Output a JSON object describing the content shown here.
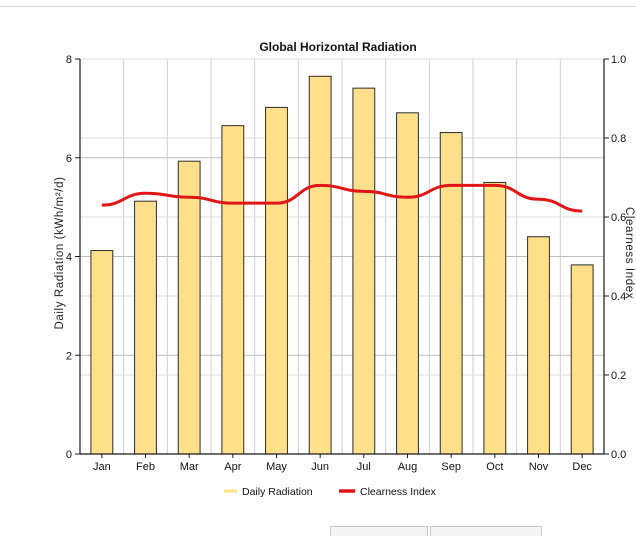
{
  "chart_data": {
    "type": "bar",
    "title": "Global Horizontal Radiation",
    "categories": [
      "Jan",
      "Feb",
      "Mar",
      "Apr",
      "May",
      "Jun",
      "Jul",
      "Aug",
      "Sep",
      "Oct",
      "Nov",
      "Dec"
    ],
    "series": [
      {
        "name": "Daily Radiation",
        "type": "bar",
        "axis": "left",
        "color": "#ffe08a",
        "values": [
          4.12,
          5.12,
          5.93,
          6.65,
          7.02,
          7.65,
          7.41,
          6.91,
          6.51,
          5.5,
          4.4,
          3.83
        ]
      },
      {
        "name": "Clearness Index",
        "type": "line",
        "axis": "right",
        "color": "#e01515",
        "values": [
          0.63,
          0.66,
          0.65,
          0.635,
          0.635,
          0.68,
          0.665,
          0.65,
          0.68,
          0.68,
          0.645,
          0.615
        ]
      }
    ],
    "ylabel": "Daily Radiation (kWh/m²/d)",
    "y2label": "Clearness Index",
    "ylim": [
      0,
      8
    ],
    "yticks": [
      "0",
      "2",
      "4",
      "6",
      "8"
    ],
    "y2lim": [
      0,
      1
    ],
    "y2ticks": [
      "0.0",
      "0.2",
      "0.4",
      "0.6",
      "0.8",
      "1.0"
    ],
    "grid": true,
    "legend_position": "bottom"
  }
}
